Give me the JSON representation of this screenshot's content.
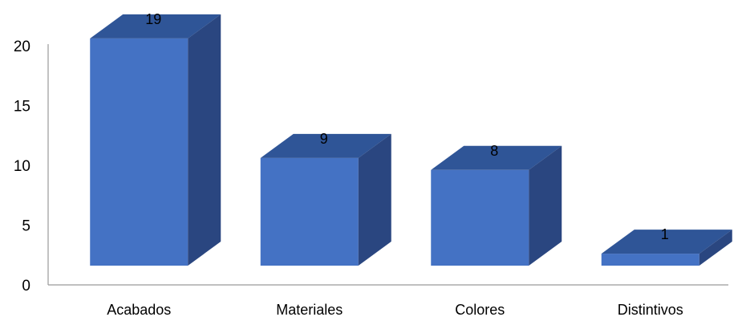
{
  "chart_data": {
    "type": "bar",
    "style": "3d",
    "categories": [
      "Acabados",
      "Materiales",
      "Colores",
      "Distintivos"
    ],
    "values": [
      19,
      9,
      8,
      1
    ],
    "data_labels": [
      "19",
      "9",
      "8",
      "1"
    ],
    "ylim": [
      0,
      20
    ],
    "yticks": [
      0,
      5,
      10,
      15,
      20
    ],
    "title": "",
    "xlabel": "",
    "ylabel": "",
    "grid": false,
    "legend": "none",
    "colors": {
      "front": "#4472c4",
      "top": "#2f5597",
      "side": "#2a4680",
      "axis": "#9a9a9a"
    }
  }
}
